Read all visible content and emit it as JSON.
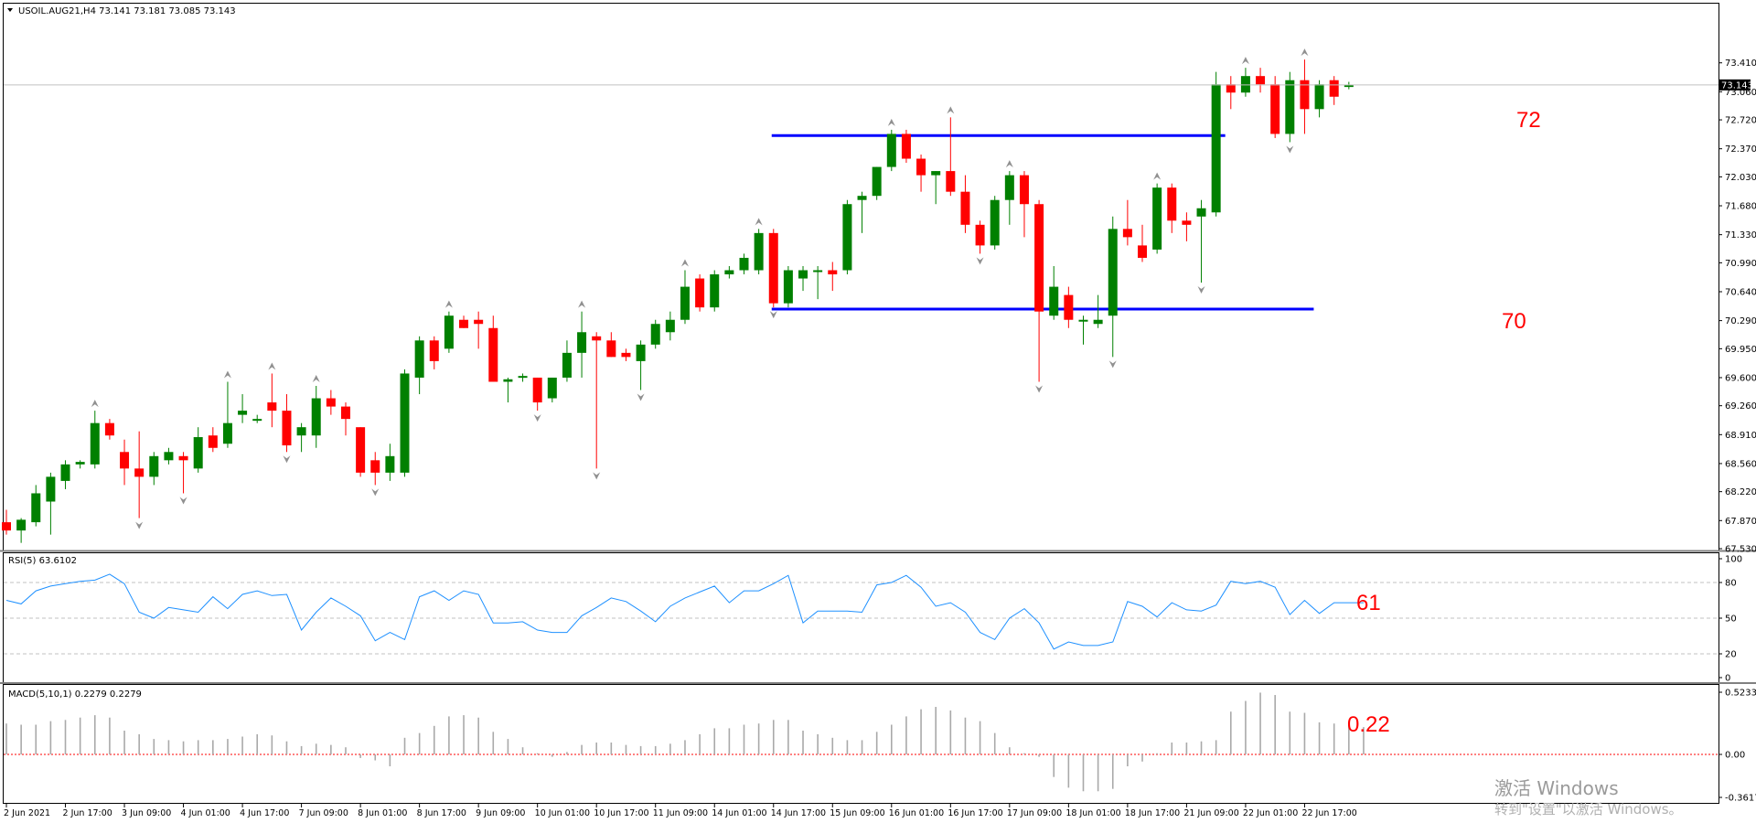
{
  "header": {
    "symbol_line": "USOIL.AUG21,H4  73.141 73.181 73.085 73.143",
    "current_price_badge": "73.143"
  },
  "rsi_panel": {
    "title": "RSI(5) 63.6102"
  },
  "macd_panel": {
    "title": "MACD(5,10,1) 0.2279 0.2279"
  },
  "annotations": {
    "level_72": "72",
    "level_70": "70",
    "rsi_value": "61",
    "macd_value": "0.22"
  },
  "watermark": {
    "line1": "激活 Windows",
    "line2": "转到\"设置\"以激活 Windows。"
  },
  "colors": {
    "bull": "#008000",
    "bear": "#ff0000",
    "level_line": "#0000ff",
    "rsi_line": "#1e90ff",
    "macd_hist": "#a9a9a9",
    "macd_zero": "#ff0000",
    "annotation": "#ff0000"
  },
  "chart_data": [
    {
      "type": "candlestick",
      "title": "USOIL.AUG21,H4",
      "ylim": [
        67.53,
        73.75
      ],
      "y_ticks": [
        "73.410",
        "73.060",
        "72.720",
        "72.370",
        "72.030",
        "71.680",
        "71.330",
        "70.990",
        "70.640",
        "70.290",
        "69.950",
        "69.600",
        "69.260",
        "68.910",
        "68.560",
        "68.220",
        "67.870",
        "67.530"
      ],
      "x_tick_labels": [
        "2 Jun 2021",
        "2 Jun 17:00",
        "3 Jun 09:00",
        "4 Jun 01:00",
        "4 Jun 17:00",
        "7 Jun 09:00",
        "8 Jun 01:00",
        "8 Jun 17:00",
        "9 Jun 09:00",
        "10 Jun 01:00",
        "10 Jun 17:00",
        "11 Jun 09:00",
        "14 Jun 01:00",
        "14 Jun 17:00",
        "15 Jun 09:00",
        "16 Jun 01:00",
        "16 Jun 17:00",
        "17 Jun 09:00",
        "18 Jun 01:00",
        "18 Jun 17:00",
        "21 Jun 09:00",
        "22 Jun 01:00",
        "22 Jun 17:00"
      ],
      "current_price": 73.143,
      "horizontal_levels": [
        72.53,
        70.43
      ],
      "candles": [
        {
          "o": 67.85,
          "h": 68.0,
          "l": 67.7,
          "c": 67.75
        },
        {
          "o": 67.75,
          "h": 67.9,
          "l": 67.6,
          "c": 67.88
        },
        {
          "o": 67.85,
          "h": 68.3,
          "l": 67.8,
          "c": 68.2
        },
        {
          "o": 68.1,
          "h": 68.45,
          "l": 67.7,
          "c": 68.4
        },
        {
          "o": 68.35,
          "h": 68.6,
          "l": 68.25,
          "c": 68.55
        },
        {
          "o": 68.55,
          "h": 68.6,
          "l": 68.5,
          "c": 68.58
        },
        {
          "o": 68.55,
          "h": 69.2,
          "l": 68.5,
          "c": 69.05
        },
        {
          "o": 69.05,
          "h": 69.1,
          "l": 68.85,
          "c": 68.9
        },
        {
          "o": 68.7,
          "h": 68.85,
          "l": 68.3,
          "c": 68.5
        },
        {
          "o": 68.5,
          "h": 68.95,
          "l": 67.9,
          "c": 68.4
        },
        {
          "o": 68.4,
          "h": 68.7,
          "l": 68.3,
          "c": 68.65
        },
        {
          "o": 68.6,
          "h": 68.75,
          "l": 68.55,
          "c": 68.7
        },
        {
          "o": 68.65,
          "h": 68.7,
          "l": 68.2,
          "c": 68.6
        },
        {
          "o": 68.5,
          "h": 69.0,
          "l": 68.45,
          "c": 68.88
        },
        {
          "o": 68.9,
          "h": 69.0,
          "l": 68.7,
          "c": 68.75
        },
        {
          "o": 68.8,
          "h": 69.55,
          "l": 68.75,
          "c": 69.05
        },
        {
          "o": 69.15,
          "h": 69.4,
          "l": 69.05,
          "c": 69.2
        },
        {
          "o": 69.1,
          "h": 69.15,
          "l": 69.05,
          "c": 69.1
        },
        {
          "o": 69.3,
          "h": 69.65,
          "l": 69.0,
          "c": 69.2
        },
        {
          "o": 69.2,
          "h": 69.4,
          "l": 68.7,
          "c": 68.78
        },
        {
          "o": 68.9,
          "h": 69.05,
          "l": 68.7,
          "c": 69.0
        },
        {
          "o": 68.9,
          "h": 69.5,
          "l": 68.75,
          "c": 69.35
        },
        {
          "o": 69.35,
          "h": 69.45,
          "l": 69.15,
          "c": 69.25
        },
        {
          "o": 69.25,
          "h": 69.3,
          "l": 68.9,
          "c": 69.1
        },
        {
          "o": 69.0,
          "h": 69.0,
          "l": 68.4,
          "c": 68.45
        },
        {
          "o": 68.6,
          "h": 68.7,
          "l": 68.3,
          "c": 68.45
        },
        {
          "o": 68.45,
          "h": 68.8,
          "l": 68.35,
          "c": 68.65
        },
        {
          "o": 68.45,
          "h": 69.7,
          "l": 68.4,
          "c": 69.65
        },
        {
          "o": 69.6,
          "h": 70.1,
          "l": 69.4,
          "c": 70.05
        },
        {
          "o": 70.05,
          "h": 70.1,
          "l": 69.7,
          "c": 69.8
        },
        {
          "o": 69.95,
          "h": 70.4,
          "l": 69.9,
          "c": 70.35
        },
        {
          "o": 70.3,
          "h": 70.35,
          "l": 70.2,
          "c": 70.2
        },
        {
          "o": 70.3,
          "h": 70.4,
          "l": 69.95,
          "c": 70.25
        },
        {
          "o": 70.2,
          "h": 70.35,
          "l": 69.55,
          "c": 69.55
        },
        {
          "o": 69.55,
          "h": 69.6,
          "l": 69.3,
          "c": 69.58
        },
        {
          "o": 69.6,
          "h": 69.65,
          "l": 69.55,
          "c": 69.62
        },
        {
          "o": 69.6,
          "h": 69.6,
          "l": 69.2,
          "c": 69.3
        },
        {
          "o": 69.35,
          "h": 69.6,
          "l": 69.3,
          "c": 69.6
        },
        {
          "o": 69.6,
          "h": 70.05,
          "l": 69.55,
          "c": 69.9
        },
        {
          "o": 69.9,
          "h": 70.4,
          "l": 69.6,
          "c": 70.15
        },
        {
          "o": 70.1,
          "h": 70.15,
          "l": 68.5,
          "c": 70.05
        },
        {
          "o": 70.05,
          "h": 70.15,
          "l": 69.85,
          "c": 69.85
        },
        {
          "o": 69.9,
          "h": 69.95,
          "l": 69.8,
          "c": 69.85
        },
        {
          "o": 69.8,
          "h": 70.05,
          "l": 69.45,
          "c": 70.0
        },
        {
          "o": 70.0,
          "h": 70.3,
          "l": 69.95,
          "c": 70.25
        },
        {
          "o": 70.15,
          "h": 70.4,
          "l": 70.05,
          "c": 70.3
        },
        {
          "o": 70.3,
          "h": 70.9,
          "l": 70.25,
          "c": 70.7
        },
        {
          "o": 70.8,
          "h": 70.85,
          "l": 70.4,
          "c": 70.45
        },
        {
          "o": 70.45,
          "h": 70.9,
          "l": 70.4,
          "c": 70.85
        },
        {
          "o": 70.85,
          "h": 70.95,
          "l": 70.8,
          "c": 70.9
        },
        {
          "o": 70.9,
          "h": 71.1,
          "l": 70.85,
          "c": 71.05
        },
        {
          "o": 70.9,
          "h": 71.4,
          "l": 70.85,
          "c": 71.35
        },
        {
          "o": 71.35,
          "h": 71.4,
          "l": 70.45,
          "c": 70.5
        },
        {
          "o": 70.5,
          "h": 70.95,
          "l": 70.45,
          "c": 70.9
        },
        {
          "o": 70.8,
          "h": 70.95,
          "l": 70.65,
          "c": 70.9
        },
        {
          "o": 70.9,
          "h": 70.95,
          "l": 70.55,
          "c": 70.9
        },
        {
          "o": 70.9,
          "h": 71.0,
          "l": 70.65,
          "c": 70.85
        },
        {
          "o": 70.9,
          "h": 71.75,
          "l": 70.85,
          "c": 71.7
        },
        {
          "o": 71.75,
          "h": 71.85,
          "l": 71.35,
          "c": 71.8
        },
        {
          "o": 71.8,
          "h": 72.15,
          "l": 71.75,
          "c": 72.15
        },
        {
          "o": 72.15,
          "h": 72.6,
          "l": 72.1,
          "c": 72.55
        },
        {
          "o": 72.55,
          "h": 72.6,
          "l": 72.2,
          "c": 72.25
        },
        {
          "o": 72.25,
          "h": 72.3,
          "l": 71.85,
          "c": 72.05
        },
        {
          "o": 72.05,
          "h": 72.1,
          "l": 71.7,
          "c": 72.1
        },
        {
          "o": 72.1,
          "h": 72.75,
          "l": 71.8,
          "c": 71.85
        },
        {
          "o": 71.85,
          "h": 72.05,
          "l": 71.35,
          "c": 71.45
        },
        {
          "o": 71.45,
          "h": 71.5,
          "l": 71.1,
          "c": 71.2
        },
        {
          "o": 71.2,
          "h": 71.8,
          "l": 71.15,
          "c": 71.75
        },
        {
          "o": 71.75,
          "h": 72.1,
          "l": 71.45,
          "c": 72.05
        },
        {
          "o": 72.05,
          "h": 72.1,
          "l": 71.3,
          "c": 71.7
        },
        {
          "o": 71.7,
          "h": 71.75,
          "l": 69.55,
          "c": 70.4
        },
        {
          "o": 70.35,
          "h": 70.95,
          "l": 70.3,
          "c": 70.7
        },
        {
          "o": 70.6,
          "h": 70.7,
          "l": 70.2,
          "c": 70.3
        },
        {
          "o": 70.3,
          "h": 70.35,
          "l": 70.0,
          "c": 70.3
        },
        {
          "o": 70.25,
          "h": 70.6,
          "l": 70.2,
          "c": 70.3
        },
        {
          "o": 70.35,
          "h": 71.55,
          "l": 69.85,
          "c": 71.4
        },
        {
          "o": 71.4,
          "h": 71.75,
          "l": 71.2,
          "c": 71.3
        },
        {
          "o": 71.2,
          "h": 71.45,
          "l": 71.0,
          "c": 71.05
        },
        {
          "o": 71.15,
          "h": 71.95,
          "l": 71.1,
          "c": 71.9
        },
        {
          "o": 71.9,
          "h": 71.95,
          "l": 71.35,
          "c": 71.5
        },
        {
          "o": 71.5,
          "h": 71.6,
          "l": 71.25,
          "c": 71.45
        },
        {
          "o": 71.55,
          "h": 71.75,
          "l": 70.75,
          "c": 71.65
        },
        {
          "o": 71.6,
          "h": 73.3,
          "l": 71.55,
          "c": 73.15
        },
        {
          "o": 73.15,
          "h": 73.25,
          "l": 72.85,
          "c": 73.05
        },
        {
          "o": 73.05,
          "h": 73.35,
          "l": 73.0,
          "c": 73.25
        },
        {
          "o": 73.25,
          "h": 73.35,
          "l": 73.05,
          "c": 73.15
        },
        {
          "o": 73.15,
          "h": 73.25,
          "l": 72.5,
          "c": 72.55
        },
        {
          "o": 72.55,
          "h": 73.3,
          "l": 72.45,
          "c": 73.2
        },
        {
          "o": 73.2,
          "h": 73.45,
          "l": 72.55,
          "c": 72.85
        },
        {
          "o": 72.85,
          "h": 73.2,
          "l": 72.75,
          "c": 73.15
        },
        {
          "o": 73.2,
          "h": 73.25,
          "l": 72.9,
          "c": 73.0
        },
        {
          "o": 73.14,
          "h": 73.18,
          "l": 73.09,
          "c": 73.14
        }
      ]
    },
    {
      "type": "line",
      "title": "RSI(5) 63.6102",
      "ylim": [
        0,
        100
      ],
      "y_ticks": [
        "100",
        "80",
        "50",
        "20",
        "0"
      ],
      "levels": [
        80,
        50,
        20
      ],
      "values": [
        65,
        62,
        73,
        77,
        79,
        81,
        82,
        87,
        79,
        55,
        50,
        59,
        57,
        55,
        68,
        58,
        70,
        73,
        69,
        70,
        40,
        55,
        67,
        60,
        52,
        31,
        38,
        32,
        68,
        73,
        65,
        73,
        70,
        46,
        46,
        47,
        40,
        38,
        38,
        52,
        59,
        67,
        64,
        56,
        47,
        60,
        67,
        72,
        77,
        63,
        73,
        73,
        79,
        86,
        46,
        56,
        56,
        56,
        55,
        78,
        80,
        86,
        76,
        60,
        63,
        55,
        38,
        32,
        50,
        58,
        46,
        24,
        30,
        27,
        27,
        30,
        64,
        60,
        51,
        63,
        57,
        56,
        61,
        81,
        79,
        81,
        76,
        53,
        65,
        54,
        63,
        63,
        63
      ]
    },
    {
      "type": "bar",
      "title": "MACD(5,10,1) 0.2279 0.2279",
      "ylim": [
        -0.3617,
        0.5233
      ],
      "y_ticks": [
        "0.5233",
        "0.00",
        "-0.3617"
      ],
      "values": [
        0.26,
        0.25,
        0.25,
        0.28,
        0.29,
        0.31,
        0.33,
        0.31,
        0.2,
        0.17,
        0.13,
        0.12,
        0.11,
        0.12,
        0.12,
        0.13,
        0.15,
        0.17,
        0.16,
        0.11,
        0.07,
        0.09,
        0.08,
        0.06,
        -0.03,
        -0.05,
        -0.1,
        0.14,
        0.18,
        0.24,
        0.32,
        0.33,
        0.31,
        0.19,
        0.13,
        0.06,
        0.01,
        -0.02,
        0.02,
        0.08,
        0.1,
        0.1,
        0.08,
        0.07,
        0.07,
        0.09,
        0.12,
        0.17,
        0.22,
        0.22,
        0.25,
        0.26,
        0.29,
        0.29,
        0.2,
        0.17,
        0.14,
        0.12,
        0.12,
        0.19,
        0.25,
        0.32,
        0.38,
        0.4,
        0.37,
        0.31,
        0.28,
        0.18,
        0.06,
        0.01,
        -0.02,
        -0.19,
        -0.28,
        -0.31,
        -0.31,
        -0.29,
        -0.1,
        -0.06,
        0.01,
        0.1,
        0.1,
        0.11,
        0.12,
        0.36,
        0.45,
        0.52,
        0.5,
        0.36,
        0.35,
        0.27,
        0.26,
        0.25,
        0.23
      ]
    }
  ]
}
